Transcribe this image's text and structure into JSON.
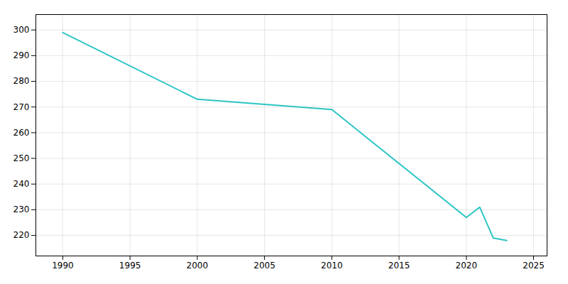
{
  "chart_data": {
    "type": "line",
    "x": [
      1990,
      2000,
      2005,
      2010,
      2020,
      2021,
      2022,
      2023
    ],
    "values": [
      299,
      273,
      271,
      269,
      227,
      231,
      219,
      218
    ],
    "color": "#2cc4c4",
    "xlim": [
      1988,
      2026
    ],
    "xticks": [
      1990,
      1995,
      2000,
      2005,
      2010,
      2015,
      2020,
      2025
    ],
    "ylim": [
      212,
      306
    ],
    "yticks": [
      220,
      230,
      240,
      250,
      260,
      270,
      280,
      290,
      300
    ],
    "grid": true
  }
}
